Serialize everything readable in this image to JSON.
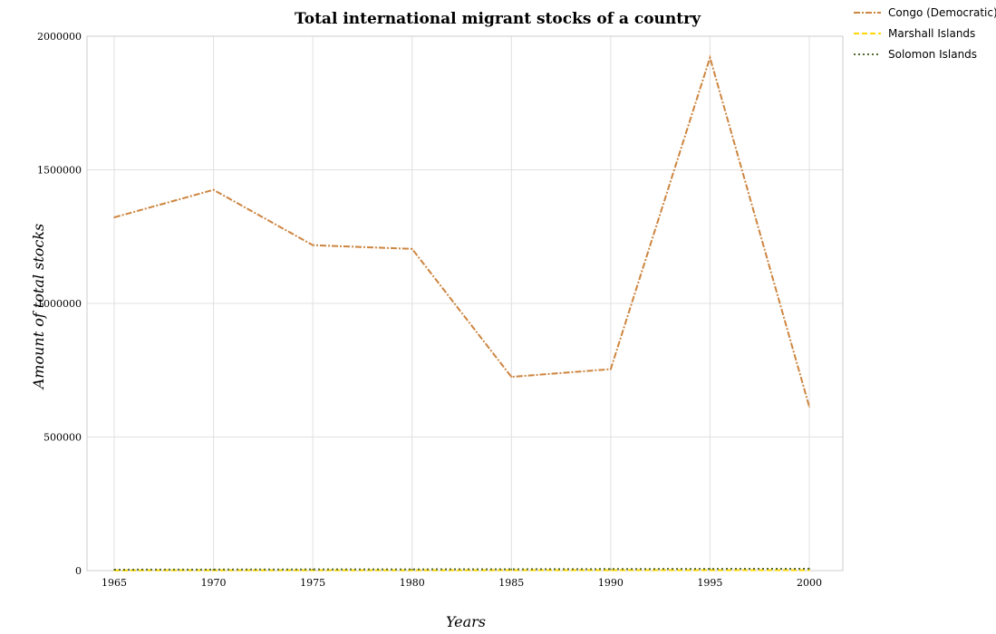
{
  "chart_data": {
    "type": "line",
    "title": "Total international migrant stocks of a country",
    "xlabel": "Years",
    "ylabel": "Amount of total stocks",
    "categories": [
      "1965",
      "1970",
      "1975",
      "1980",
      "1985",
      "1990",
      "1995",
      "2000"
    ],
    "y_ticks": [
      "0",
      "500000",
      "1000000",
      "1500000",
      "2000000"
    ],
    "ylim": [
      0,
      2000000
    ],
    "grid": true,
    "legend_position": "top-right",
    "series": [
      {
        "name": "Congo (Democratic)",
        "color": "#cd853f",
        "values": [
          1322000,
          1425000,
          1218000,
          1204000,
          725000,
          754000,
          1920000,
          613000
        ]
      },
      {
        "name": "Marshall Islands",
        "color": "#ffd700",
        "values": [
          1000,
          1200,
          1300,
          1400,
          1500,
          1600,
          1700,
          1700
        ]
      },
      {
        "name": "Solomon Islands",
        "color": "#556b2f",
        "values": [
          3500,
          4000,
          4500,
          4800,
          5200,
          5800,
          6500,
          7000
        ]
      }
    ]
  }
}
